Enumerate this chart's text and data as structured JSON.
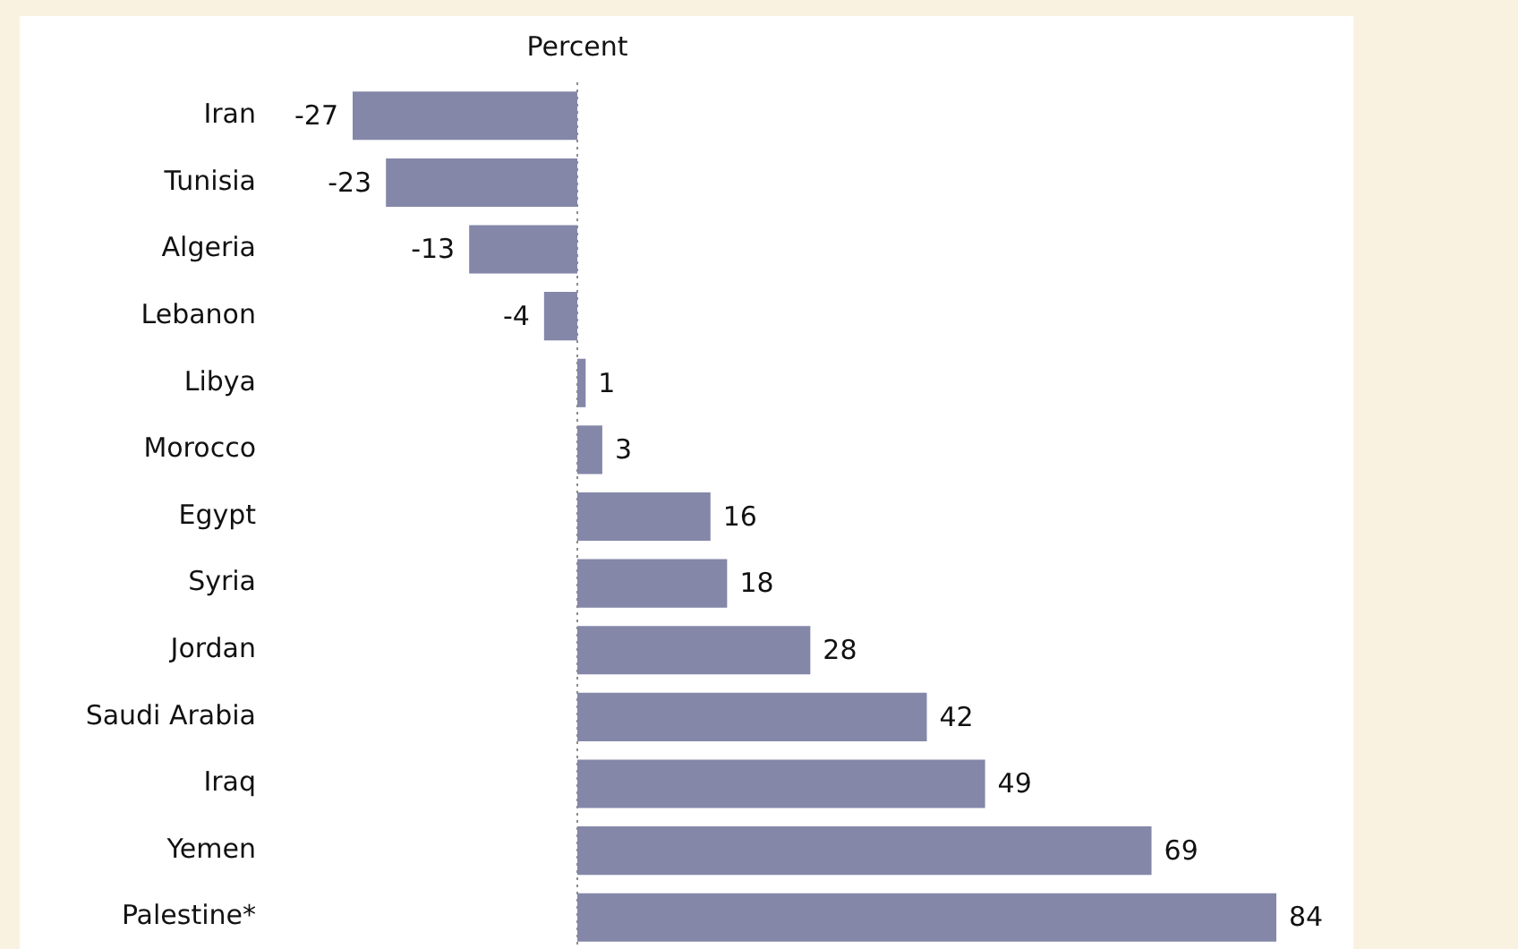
{
  "chart_data": {
    "type": "bar",
    "orientation": "horizontal",
    "xlabel": "Percent",
    "categories": [
      "Iran",
      "Tunisia",
      "Algeria",
      "Lebanon",
      "Libya",
      "Morocco",
      "Egypt",
      "Syria",
      "Jordan",
      "Saudi Arabia",
      "Iraq",
      "Yemen",
      "Palestine*"
    ],
    "values": [
      -27,
      -23,
      -13,
      -4,
      1,
      3,
      16,
      18,
      28,
      42,
      49,
      69,
      84
    ],
    "color": "#8487a8",
    "data_labels": true,
    "ref_lines": [
      {
        "axis": "x",
        "value": 0,
        "color": "#8c8c8c",
        "line_style": "dotted"
      }
    ],
    "grid": false,
    "legend": false
  }
}
